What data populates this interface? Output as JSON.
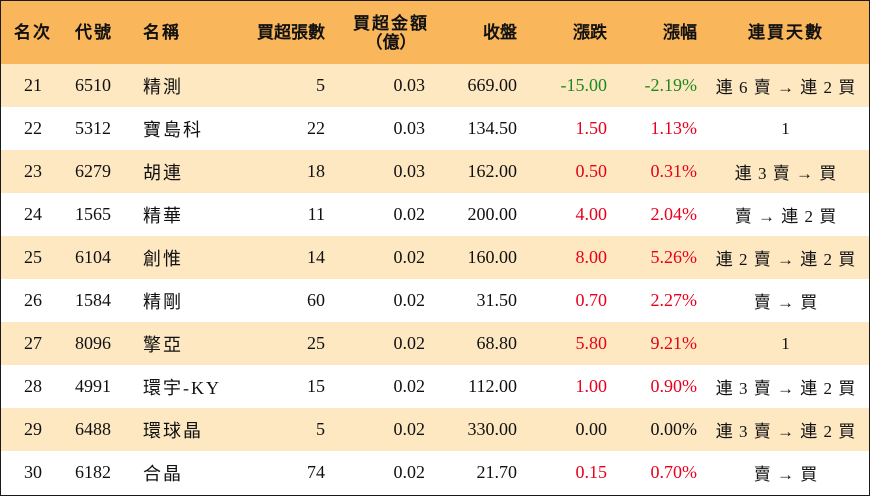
{
  "colors": {
    "header_bg": "#f9b65a",
    "odd_row_bg": "#fde8c2",
    "up": "#e8001c",
    "down": "#1e8a1e"
  },
  "headers": [
    "名次",
    "代號",
    "名稱",
    "買超張數",
    "買超金額",
    "（億）",
    "收盤",
    "漲跌",
    "漲幅",
    "連買天數"
  ],
  "rows": [
    {
      "rank": "21",
      "code": "6510",
      "name": "精測",
      "lots": "5",
      "amount": "0.03",
      "close": "669.00",
      "change": "-15.00",
      "pct": "-2.19%",
      "dir": "neg",
      "streak": "連 6 賣 → 連 2 買"
    },
    {
      "rank": "22",
      "code": "5312",
      "name": "寶島科",
      "lots": "22",
      "amount": "0.03",
      "close": "134.50",
      "change": "1.50",
      "pct": "1.13%",
      "dir": "pos",
      "streak": "1"
    },
    {
      "rank": "23",
      "code": "6279",
      "name": "胡連",
      "lots": "18",
      "amount": "0.03",
      "close": "162.00",
      "change": "0.50",
      "pct": "0.31%",
      "dir": "pos",
      "streak": "連 3 賣 → 買"
    },
    {
      "rank": "24",
      "code": "1565",
      "name": "精華",
      "lots": "11",
      "amount": "0.02",
      "close": "200.00",
      "change": "4.00",
      "pct": "2.04%",
      "dir": "pos",
      "streak": "賣 → 連 2 買"
    },
    {
      "rank": "25",
      "code": "6104",
      "name": "創惟",
      "lots": "14",
      "amount": "0.02",
      "close": "160.00",
      "change": "8.00",
      "pct": "5.26%",
      "dir": "pos",
      "streak": "連 2 賣 → 連 2 買"
    },
    {
      "rank": "26",
      "code": "1584",
      "name": "精剛",
      "lots": "60",
      "amount": "0.02",
      "close": "31.50",
      "change": "0.70",
      "pct": "2.27%",
      "dir": "pos",
      "streak": "賣 → 買"
    },
    {
      "rank": "27",
      "code": "8096",
      "name": "擎亞",
      "lots": "25",
      "amount": "0.02",
      "close": "68.80",
      "change": "5.80",
      "pct": "9.21%",
      "dir": "pos",
      "streak": "1"
    },
    {
      "rank": "28",
      "code": "4991",
      "name": "環宇-KY",
      "lots": "15",
      "amount": "0.02",
      "close": "112.00",
      "change": "1.00",
      "pct": "0.90%",
      "dir": "pos",
      "streak": "連 3 賣 → 連 2 買"
    },
    {
      "rank": "29",
      "code": "6488",
      "name": "環球晶",
      "lots": "5",
      "amount": "0.02",
      "close": "330.00",
      "change": "0.00",
      "pct": "0.00%",
      "dir": "flat",
      "streak": "連 3 賣 → 連 2 買"
    },
    {
      "rank": "30",
      "code": "6182",
      "name": "合晶",
      "lots": "74",
      "amount": "0.02",
      "close": "21.70",
      "change": "0.15",
      "pct": "0.70%",
      "dir": "pos",
      "streak": "賣 → 買"
    }
  ]
}
